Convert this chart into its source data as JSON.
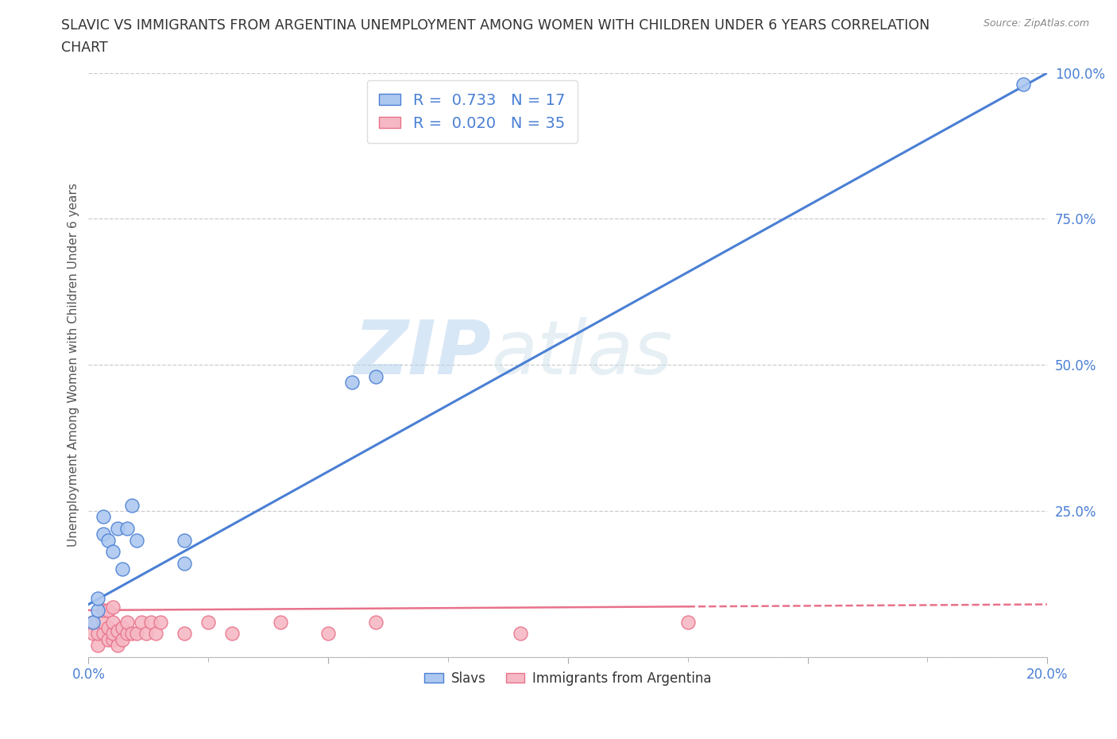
{
  "title_line1": "SLAVIC VS IMMIGRANTS FROM ARGENTINA UNEMPLOYMENT AMONG WOMEN WITH CHILDREN UNDER 6 YEARS CORRELATION",
  "title_line2": "CHART",
  "source": "Source: ZipAtlas.com",
  "ylabel": "Unemployment Among Women with Children Under 6 years",
  "xlabel": "",
  "xmin": 0.0,
  "xmax": 0.2,
  "ymin": 0.0,
  "ymax": 1.0,
  "watermark_zip": "ZIP",
  "watermark_atlas": "atlas",
  "legend_r1": "R =  0.733   N = 17",
  "legend_r2": "R =  0.020   N = 35",
  "slavs_color": "#adc8f0",
  "argentina_color": "#f5b8c4",
  "trend_slavs_color": "#4a7fd4",
  "trend_argentina_color": "#e8728a",
  "slavs_x": [
    0.001,
    0.002,
    0.002,
    0.003,
    0.003,
    0.004,
    0.005,
    0.006,
    0.007,
    0.008,
    0.009,
    0.01,
    0.02,
    0.02,
    0.055,
    0.06,
    0.195
  ],
  "slavs_y": [
    0.06,
    0.08,
    0.1,
    0.21,
    0.24,
    0.2,
    0.18,
    0.22,
    0.15,
    0.22,
    0.26,
    0.2,
    0.16,
    0.2,
    0.47,
    0.48,
    0.98
  ],
  "argentina_x": [
    0.001,
    0.001,
    0.002,
    0.002,
    0.003,
    0.003,
    0.003,
    0.004,
    0.004,
    0.004,
    0.005,
    0.005,
    0.005,
    0.005,
    0.006,
    0.006,
    0.007,
    0.007,
    0.008,
    0.008,
    0.009,
    0.01,
    0.011,
    0.012,
    0.013,
    0.014,
    0.015,
    0.02,
    0.025,
    0.03,
    0.04,
    0.05,
    0.06,
    0.09,
    0.125
  ],
  "argentina_y": [
    0.04,
    0.06,
    0.02,
    0.04,
    0.04,
    0.06,
    0.08,
    0.03,
    0.05,
    0.08,
    0.03,
    0.04,
    0.06,
    0.085,
    0.02,
    0.045,
    0.03,
    0.05,
    0.04,
    0.06,
    0.04,
    0.04,
    0.06,
    0.04,
    0.06,
    0.04,
    0.06,
    0.04,
    0.06,
    0.04,
    0.06,
    0.04,
    0.06,
    0.04,
    0.06
  ],
  "trend_slavs_x0": 0.0,
  "trend_slavs_y0": 0.09,
  "trend_slavs_x1": 0.2,
  "trend_slavs_y1": 1.0,
  "trend_argentina_x0": 0.0,
  "trend_argentina_y0": 0.08,
  "trend_argentina_x1": 0.2,
  "trend_argentina_y1": 0.09,
  "yticks": [
    0.0,
    0.25,
    0.5,
    0.75,
    1.0
  ],
  "ytick_labels": [
    "",
    "25.0%",
    "50.0%",
    "75.0%",
    "100.0%"
  ],
  "xticks": [
    0.0,
    0.05,
    0.1,
    0.15,
    0.2
  ],
  "xtick_labels": [
    "0.0%",
    "",
    "",
    "",
    "20.0%"
  ],
  "grid_color": "#cccccc",
  "bg_color": "#ffffff",
  "title_color": "#333333",
  "axis_tick_color": "#4a7fd4",
  "legend_labels": [
    "Slavs",
    "Immigrants from Argentina"
  ]
}
